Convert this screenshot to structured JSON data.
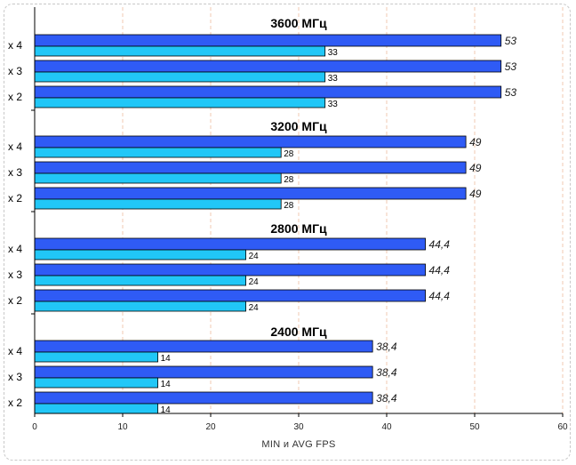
{
  "chart_data": {
    "type": "bar",
    "orientation": "horizontal",
    "xlabel": "MIN и AVG FPS",
    "xlim": [
      0,
      60
    ],
    "xticks": [
      0,
      10,
      20,
      30,
      40,
      50,
      60
    ],
    "grid": "vertical dashed",
    "colors": {
      "avg": "#2f5bf5",
      "min": "#21c7f7",
      "grid": "#f0c8b0"
    },
    "groups": [
      {
        "title": "3600 МГц",
        "bars": [
          {
            "category": "x 4",
            "avg": 53,
            "avg_label": "53",
            "min": 33,
            "min_label": "33"
          },
          {
            "category": "x 3",
            "avg": 53,
            "avg_label": "53",
            "min": 33,
            "min_label": "33"
          },
          {
            "category": "x 2",
            "avg": 53,
            "avg_label": "53",
            "min": 33,
            "min_label": "33"
          }
        ]
      },
      {
        "title": "3200 МГц",
        "bars": [
          {
            "category": "x 4",
            "avg": 49,
            "avg_label": "49",
            "min": 28,
            "min_label": "28"
          },
          {
            "category": "x 3",
            "avg": 49,
            "avg_label": "49",
            "min": 28,
            "min_label": "28"
          },
          {
            "category": "x 2",
            "avg": 49,
            "avg_label": "49",
            "min": 28,
            "min_label": "28"
          }
        ]
      },
      {
        "title": "2800 МГц",
        "bars": [
          {
            "category": "x 4",
            "avg": 44.4,
            "avg_label": "44,4",
            "min": 24,
            "min_label": "24"
          },
          {
            "category": "x 3",
            "avg": 44.4,
            "avg_label": "44,4",
            "min": 24,
            "min_label": "24"
          },
          {
            "category": "x 2",
            "avg": 44.4,
            "avg_label": "44,4",
            "min": 24,
            "min_label": "24"
          }
        ]
      },
      {
        "title": "2400 МГц",
        "bars": [
          {
            "category": "x 4",
            "avg": 38.4,
            "avg_label": "38,4",
            "min": 14,
            "min_label": "14"
          },
          {
            "category": "x 3",
            "avg": 38.4,
            "avg_label": "38,4",
            "min": 14,
            "min_label": "14"
          },
          {
            "category": "x 2",
            "avg": 38.4,
            "avg_label": "38,4",
            "min": 14,
            "min_label": "14"
          }
        ]
      }
    ]
  }
}
